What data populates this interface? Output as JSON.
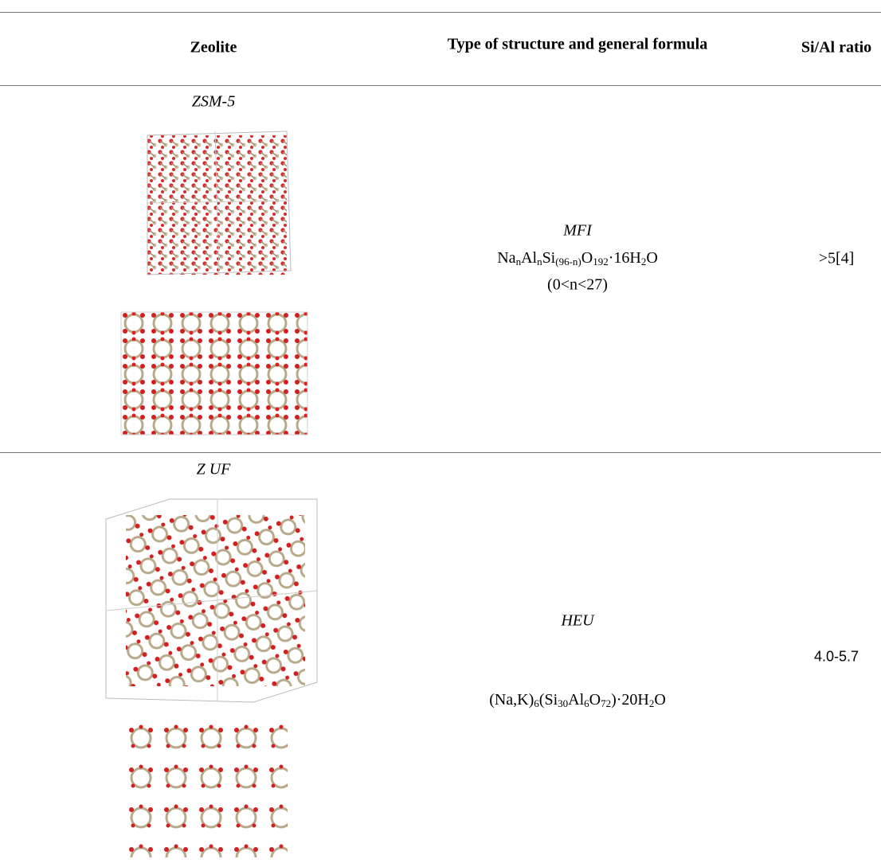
{
  "table": {
    "header": [
      "Zeolite",
      "Type of structure and general formula",
      "Si/Al ratio"
    ],
    "rows": [
      {
        "name": "ZSM-5",
        "structure": "MFI",
        "formula": [
          {
            "text": "Na"
          },
          {
            "sub": "n"
          },
          {
            "text": "Al"
          },
          {
            "sub": "n"
          },
          {
            "text": "Si"
          },
          {
            "sub": "(96-n)"
          },
          {
            "text": "O"
          },
          {
            "sub": "192"
          },
          {
            "text": "·16H"
          },
          {
            "sub": "2"
          },
          {
            "text": "O"
          }
        ],
        "condition": "(0<n<27)",
        "ratio": ">5[4]"
      },
      {
        "name": "Z UF",
        "structure": "HEU",
        "formula": [
          {
            "text": "(Na,K)"
          },
          {
            "sub": "6"
          },
          {
            "text": "(Si"
          },
          {
            "sub": "30"
          },
          {
            "text": "Al"
          },
          {
            "sub": "6"
          },
          {
            "text": "O"
          },
          {
            "sub": "72"
          },
          {
            "text": ")·20H"
          },
          {
            "sub": "2"
          },
          {
            "text": "O"
          }
        ],
        "ratio": "4.0-5.7"
      }
    ]
  }
}
